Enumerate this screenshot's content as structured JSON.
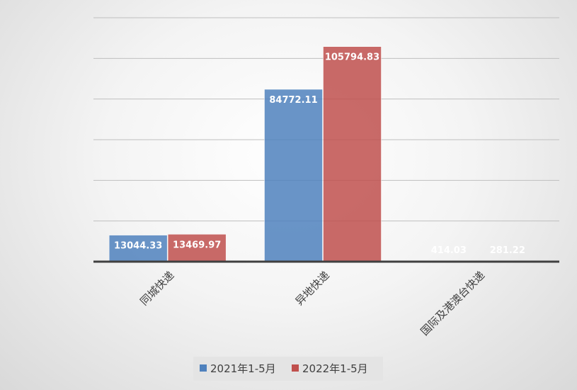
{
  "chart_data": {
    "type": "bar",
    "categories": [
      "同城快递",
      "异地快递",
      "国际及港澳台快递"
    ],
    "series": [
      {
        "name": "2021年1-5月",
        "values": [
          13044.33,
          84772.11,
          414.03
        ],
        "color": "#4f81bd"
      },
      {
        "name": "2022年1-5月",
        "values": [
          13469.97,
          105794.83,
          281.22
        ],
        "color": "#c0504d"
      }
    ],
    "ylim": [
      0,
      120000
    ],
    "grid": true,
    "legend": "bottom"
  }
}
